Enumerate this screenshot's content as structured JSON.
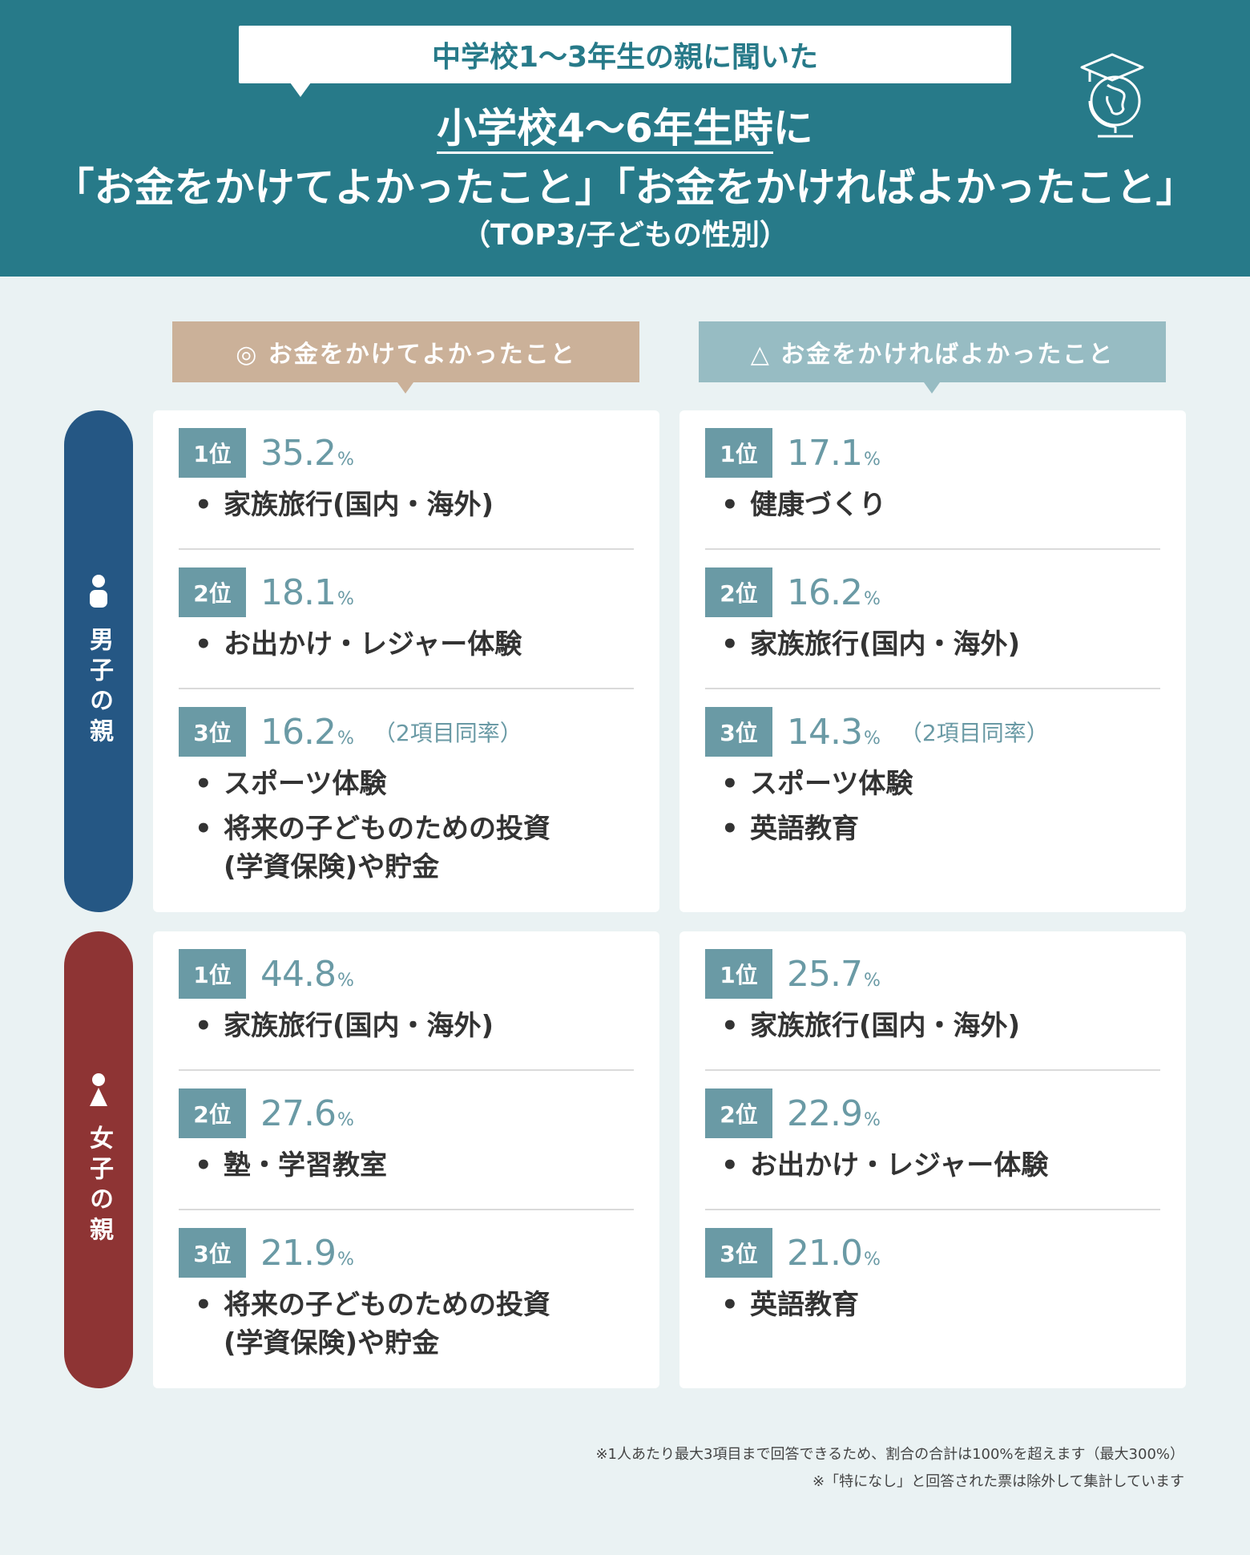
{
  "header": {
    "bubble": "中学校1〜3年生の親に聞いた",
    "title_line1_underlined": "小学校4〜6年生時",
    "title_line1_rest": "に",
    "title_line2": "「お金をかけてよかったこと」「お金をかければよかったこと」",
    "title_line3": "（TOP3/子どもの性別）",
    "logo_icon": "graduation-globe-icon"
  },
  "columns": {
    "left": "◎ お金をかけてよかったこと",
    "right": "△ お金をかければよかったこと"
  },
  "groups": {
    "boy": "男子の親",
    "girl": "女子の親"
  },
  "panels": {
    "boy_good": [
      {
        "rank": "1位",
        "value": "35.2",
        "unit": "%",
        "note": "",
        "items": [
          "家族旅行(国内・海外)"
        ]
      },
      {
        "rank": "2位",
        "value": "18.1",
        "unit": "%",
        "note": "",
        "items": [
          "お出かけ・レジャー体験"
        ]
      },
      {
        "rank": "3位",
        "value": "16.2",
        "unit": "%",
        "note": "（2項目同率）",
        "items": [
          "スポーツ体験",
          "将来の子どものための投資|(学資保険)や貯金"
        ]
      }
    ],
    "boy_wish": [
      {
        "rank": "1位",
        "value": "17.1",
        "unit": "%",
        "note": "",
        "items": [
          "健康づくり"
        ]
      },
      {
        "rank": "2位",
        "value": "16.2",
        "unit": "%",
        "note": "",
        "items": [
          "家族旅行(国内・海外)"
        ]
      },
      {
        "rank": "3位",
        "value": "14.3",
        "unit": "%",
        "note": "（2項目同率）",
        "items": [
          "スポーツ体験",
          "英語教育"
        ]
      }
    ],
    "girl_good": [
      {
        "rank": "1位",
        "value": "44.8",
        "unit": "%",
        "note": "",
        "items": [
          "家族旅行(国内・海外)"
        ]
      },
      {
        "rank": "2位",
        "value": "27.6",
        "unit": "%",
        "note": "",
        "items": [
          "塾・学習教室"
        ]
      },
      {
        "rank": "3位",
        "value": "21.9",
        "unit": "%",
        "note": "",
        "items": [
          "将来の子どものための投資|(学資保険)や貯金"
        ]
      }
    ],
    "girl_wish": [
      {
        "rank": "1位",
        "value": "25.7",
        "unit": "%",
        "note": "",
        "items": [
          "家族旅行(国内・海外)"
        ]
      },
      {
        "rank": "2位",
        "value": "22.9",
        "unit": "%",
        "note": "",
        "items": [
          "お出かけ・レジャー体験"
        ]
      },
      {
        "rank": "3位",
        "value": "21.0",
        "unit": "%",
        "note": "",
        "items": [
          "英語教育"
        ]
      }
    ]
  },
  "footnotes": {
    "line1": "※1人あたり最大3項目まで回答できるため、割合の合計は100%を超えます（最大300%）",
    "line2": "※「特になし」と回答された票は除外して集計しています"
  },
  "colors": {
    "header": "#277a89",
    "background": "#eaf2f3",
    "left_header": "#cbb199",
    "right_header": "#97bcc3",
    "badge": "#6a9aa5",
    "boy": "#255784",
    "girl": "#8e3434"
  }
}
